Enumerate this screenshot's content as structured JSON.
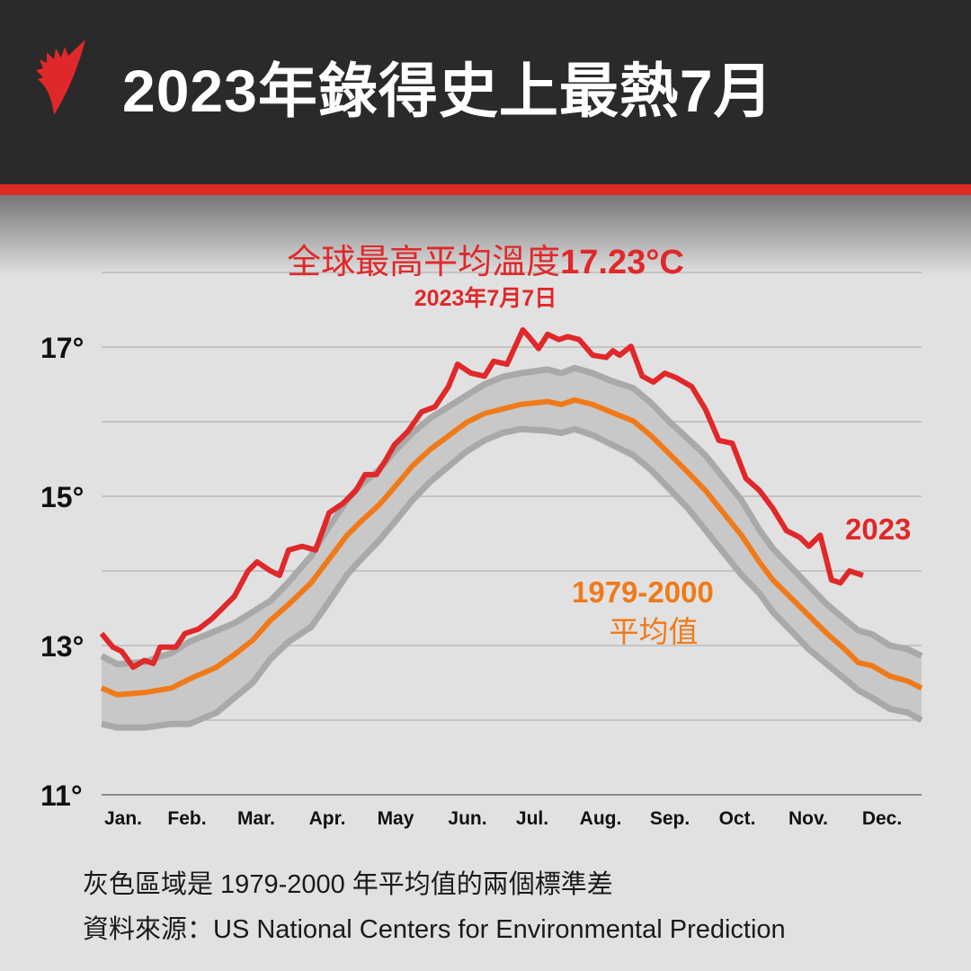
{
  "header": {
    "title": "2023年錄得史上最熱7月",
    "logo_icon": "sbs-flame-logo"
  },
  "annotations": {
    "record_label": "全球最高平均溫度",
    "record_value": "17.23°C",
    "record_date": "2023年7月7日",
    "series_2023_label": "2023",
    "baseline_label_years": "1979-2000",
    "baseline_label_text": "平均值"
  },
  "footer": {
    "note": "灰色區域是 1979-2000 年平均值的兩個標準差",
    "source": "資料來源：US National Centers for Environmental Prediction"
  },
  "colors": {
    "header_bg": "#2a2a2a",
    "accent_red": "#e0282a",
    "baseline_orange": "#f07a1a",
    "band_fill": "#c8c8c8",
    "band_edge": "#a9a9a9",
    "background": "#e1e1e1"
  },
  "chart_data": {
    "type": "line",
    "title": "2023年錄得史上最熱7月",
    "xlabel": "",
    "ylabel": "",
    "x_unit": "day of year",
    "xlim": [
      1,
      365
    ],
    "ylim": [
      11,
      18
    ],
    "grid": true,
    "y_ticks": [
      11,
      12,
      13,
      14,
      15,
      16,
      17,
      18
    ],
    "y_tick_labels": [
      {
        "value": 17,
        "label": "17°"
      },
      {
        "value": 15,
        "label": "15°"
      },
      {
        "value": 13,
        "label": "13°"
      },
      {
        "value": 11,
        "label": "11°"
      }
    ],
    "x_tick_labels": [
      "Jan.",
      "Feb.",
      "Mar.",
      "Apr.",
      "May",
      "Jun.",
      "Jul.",
      "Aug.",
      "Sep.",
      "Oct.",
      "Nov.",
      "Dec."
    ],
    "series": [
      {
        "name": "2023",
        "color": "#e0282a",
        "x": [
          1,
          6,
          10,
          15,
          20,
          24,
          27,
          34,
          38,
          44,
          50,
          54,
          60,
          66,
          70,
          76,
          80,
          84,
          90,
          96,
          102,
          108,
          114,
          118,
          123,
          127,
          131,
          137,
          143,
          149,
          155,
          159,
          165,
          171,
          175,
          181,
          188,
          191,
          195,
          199,
          204,
          208,
          213,
          219,
          225,
          228,
          231,
          236,
          241,
          246,
          251,
          256,
          263,
          269,
          275,
          281,
          287,
          293,
          299,
          305,
          311,
          315,
          320,
          325,
          329,
          333,
          339
        ],
        "y": [
          13.16,
          12.98,
          12.92,
          12.71,
          12.8,
          12.76,
          12.98,
          12.98,
          13.16,
          13.22,
          13.36,
          13.48,
          13.66,
          14.0,
          14.12,
          14.0,
          13.94,
          14.28,
          14.33,
          14.28,
          14.78,
          14.9,
          15.08,
          15.29,
          15.29,
          15.48,
          15.69,
          15.87,
          16.13,
          16.2,
          16.47,
          16.77,
          16.65,
          16.61,
          16.81,
          16.77,
          17.23,
          17.13,
          16.98,
          17.17,
          17.1,
          17.14,
          17.1,
          16.89,
          16.86,
          16.95,
          16.89,
          17.01,
          16.61,
          16.53,
          16.65,
          16.59,
          16.47,
          16.17,
          15.75,
          15.71,
          15.24,
          15.08,
          14.84,
          14.54,
          14.45,
          14.33,
          14.48,
          13.88,
          13.84,
          14.0,
          13.94
        ]
      },
      {
        "name": "1979-2000 平均值",
        "color": "#f07a1a",
        "x": [
          1,
          8,
          20,
          32,
          40,
          52,
          60,
          68,
          76,
          84,
          94,
          100,
          110,
          116,
          124,
          131,
          139,
          147,
          155,
          163,
          171,
          179,
          187,
          199,
          205,
          211,
          219,
          227,
          237,
          245,
          253,
          261,
          269,
          277,
          285,
          293,
          299,
          307,
          315,
          323,
          331,
          337,
          343,
          351,
          359,
          365
        ],
        "y": [
          12.43,
          12.34,
          12.37,
          12.43,
          12.55,
          12.71,
          12.88,
          13.07,
          13.34,
          13.55,
          13.84,
          14.08,
          14.48,
          14.66,
          14.88,
          15.12,
          15.41,
          15.63,
          15.81,
          15.99,
          16.11,
          16.17,
          16.23,
          16.27,
          16.23,
          16.29,
          16.23,
          16.13,
          16.01,
          15.81,
          15.57,
          15.33,
          15.08,
          14.78,
          14.48,
          14.12,
          13.88,
          13.64,
          13.4,
          13.16,
          12.95,
          12.77,
          12.73,
          12.59,
          12.52,
          12.43
        ],
        "band_upper": [
          12.86,
          12.75,
          12.78,
          12.9,
          13.05,
          13.2,
          13.3,
          13.45,
          13.6,
          13.85,
          14.2,
          14.5,
          14.95,
          15.15,
          15.35,
          15.6,
          15.85,
          16.05,
          16.2,
          16.35,
          16.5,
          16.6,
          16.65,
          16.7,
          16.65,
          16.72,
          16.65,
          16.55,
          16.45,
          16.25,
          16.0,
          15.78,
          15.55,
          15.25,
          14.95,
          14.55,
          14.3,
          14.05,
          13.8,
          13.55,
          13.35,
          13.2,
          13.15,
          13.0,
          12.95,
          12.86
        ],
        "band_lower": [
          11.95,
          11.9,
          11.9,
          11.95,
          11.95,
          12.1,
          12.3,
          12.5,
          12.82,
          13.05,
          13.25,
          13.5,
          13.95,
          14.15,
          14.4,
          14.65,
          14.95,
          15.2,
          15.4,
          15.6,
          15.75,
          15.85,
          15.9,
          15.88,
          15.85,
          15.9,
          15.82,
          15.7,
          15.55,
          15.35,
          15.1,
          14.85,
          14.55,
          14.25,
          13.95,
          13.7,
          13.45,
          13.2,
          12.95,
          12.75,
          12.55,
          12.4,
          12.3,
          12.15,
          12.1,
          12.0
        ]
      }
    ],
    "annotations": [
      "全球最高平均溫度17.23°C",
      "2023年7月7日",
      "2023",
      "1979-2000",
      "平均值"
    ],
    "footnote": "灰色區域是 1979-2000 年平均值的兩個標準差"
  }
}
